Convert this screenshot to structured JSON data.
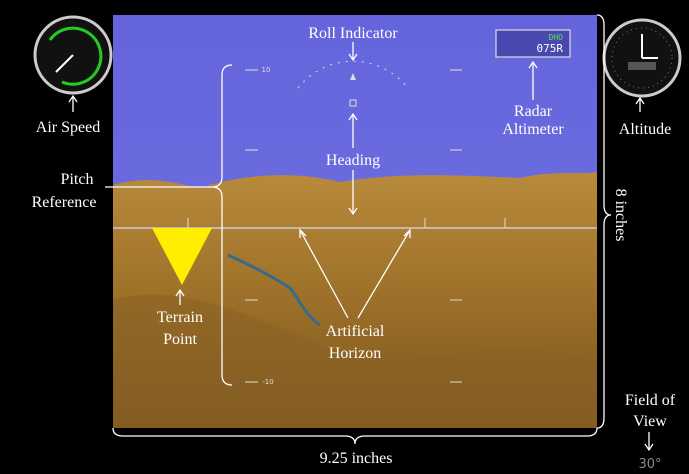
{
  "labels": {
    "roll_indicator": "Roll Indicator",
    "air_speed": "Air Speed",
    "radar_altimeter": [
      "Radar",
      "Altimeter"
    ],
    "altitude": "Altitude",
    "heading": "Heading",
    "pitch_reference": [
      "Pitch",
      "Reference"
    ],
    "height": "8 inches",
    "terrain_point": [
      "Terrain",
      "Point"
    ],
    "artificial_horizon": [
      "Artificial",
      "Horizon"
    ],
    "field_of_view": [
      "Field of",
      "View"
    ],
    "field_of_view_value": "30°",
    "width": "9.25 inches"
  },
  "display": {
    "radar_mode": "DHO",
    "radar_value": "075R",
    "pitch_up": "10",
    "pitch_down": "-10"
  }
}
